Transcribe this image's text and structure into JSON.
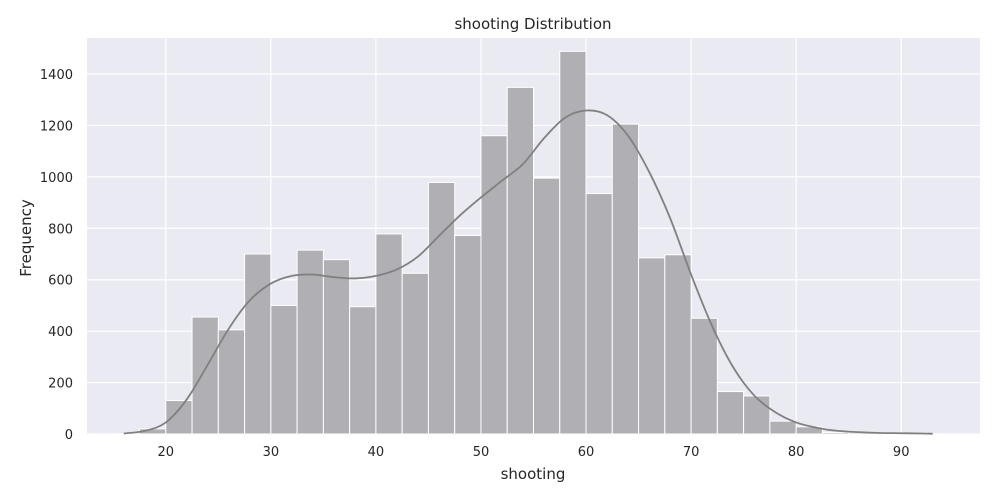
{
  "chart_data": {
    "type": "bar",
    "title": "shooting Distribution",
    "xlabel": "shooting",
    "ylabel": "Frequency",
    "xlim": [
      12.5,
      97.5
    ],
    "ylim": [
      0,
      1540
    ],
    "x_ticks": [
      20,
      30,
      40,
      50,
      60,
      70,
      80,
      90
    ],
    "y_ticks": [
      0,
      200,
      400,
      600,
      800,
      1000,
      1200,
      1400
    ],
    "grid": true,
    "bin_edges": [
      17.5,
      20.0,
      22.5,
      25.0,
      27.5,
      30.0,
      32.5,
      35.0,
      37.5,
      40.0,
      42.5,
      45.0,
      47.5,
      50.0,
      52.5,
      55.0,
      57.5,
      60.0,
      62.5,
      65.0,
      67.5,
      70.0,
      72.5,
      75.0,
      77.5,
      80.0,
      82.5,
      85.0,
      87.5,
      90.0,
      92.5
    ],
    "values": [
      20,
      130,
      455,
      405,
      700,
      500,
      715,
      678,
      495,
      778,
      625,
      978,
      772,
      1160,
      1348,
      995,
      1488,
      935,
      1205,
      685,
      697,
      450,
      165,
      148,
      50,
      28,
      6,
      5,
      4,
      3
    ],
    "kde": {
      "x": [
        16,
        18,
        20,
        22,
        24,
        26,
        28,
        30,
        32,
        34,
        36,
        38,
        40,
        42,
        44,
        46,
        48,
        50,
        52,
        54,
        56,
        58,
        60,
        62,
        64,
        66,
        68,
        70,
        72,
        74,
        76,
        78,
        80,
        82,
        84,
        86,
        88,
        90,
        92,
        93
      ],
      "y": [
        2,
        12,
        45,
        135,
        270,
        410,
        520,
        585,
        615,
        620,
        610,
        605,
        615,
        640,
        690,
        770,
        850,
        920,
        985,
        1050,
        1150,
        1230,
        1258,
        1240,
        1160,
        1020,
        840,
        620,
        420,
        260,
        150,
        85,
        45,
        24,
        12,
        7,
        4,
        3,
        2,
        1
      ]
    }
  }
}
